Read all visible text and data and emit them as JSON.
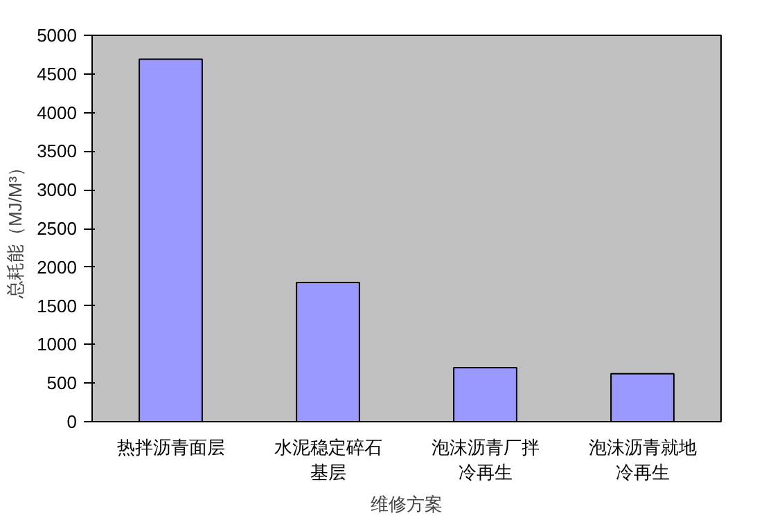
{
  "chart_data": {
    "type": "bar",
    "xlabel": "维修方案",
    "ylabel": "总耗能（MJ/M³）",
    "categories": [
      "热拌沥青面层",
      "水泥稳定碎石基层",
      "泡沫沥青厂拌冷再生",
      "泡沫沥青就地冷再生"
    ],
    "values": [
      4690,
      1800,
      700,
      620
    ],
    "color": "#9999ff",
    "ylim": [
      0,
      5000
    ],
    "yticks": [
      0,
      500,
      1000,
      1500,
      2000,
      2500,
      3000,
      3500,
      4000,
      4500,
      5000
    ],
    "grid": false
  }
}
